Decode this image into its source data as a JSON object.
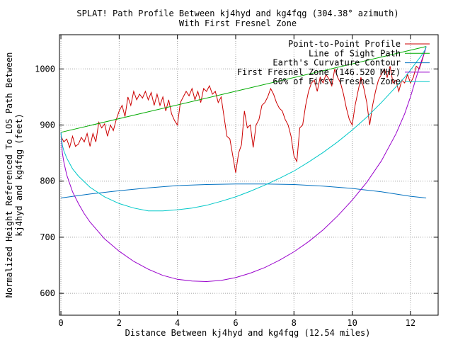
{
  "chart_data": {
    "type": "line",
    "title_line1": "SPLAT! Path Profile Between kj4hyd and kg4fqg (304.38° azimuth)",
    "title_line2": "With First Fresnel Zone",
    "xlabel": "Distance Between kj4hyd and kg4fqg (12.54 miles)",
    "ylabel_line1": "Normalized Height Referenced To LOS Path Between",
    "ylabel_line2": "kj4hyd and kg4fqg (feet)",
    "xlim": [
      -0.05,
      12.95
    ],
    "ylim": [
      561,
      1061
    ],
    "x_ticks": [
      0,
      2,
      4,
      6,
      8,
      10,
      12
    ],
    "x_tick_labels": [
      "0",
      "2",
      "4",
      "6",
      "8",
      "10",
      "12"
    ],
    "y_ticks": [
      600,
      700,
      800,
      900,
      1000
    ],
    "y_tick_labels": [
      "600",
      "700",
      "800",
      "900",
      "1000"
    ],
    "grid": true,
    "legend_position": "top-right",
    "series": [
      {
        "name": "Point-to-Point Profile",
        "color": "#cc0000",
        "x": [
          0,
          0.1,
          0.2,
          0.3,
          0.4,
          0.5,
          0.6,
          0.7,
          0.8,
          0.9,
          1.0,
          1.1,
          1.2,
          1.3,
          1.4,
          1.5,
          1.6,
          1.7,
          1.8,
          1.9,
          2.0,
          2.1,
          2.2,
          2.3,
          2.4,
          2.5,
          2.6,
          2.7,
          2.8,
          2.9,
          3.0,
          3.1,
          3.2,
          3.3,
          3.4,
          3.5,
          3.6,
          3.7,
          3.8,
          3.9,
          4.0,
          4.1,
          4.2,
          4.3,
          4.4,
          4.5,
          4.6,
          4.7,
          4.8,
          4.9,
          5.0,
          5.1,
          5.2,
          5.3,
          5.4,
          5.5,
          5.6,
          5.7,
          5.8,
          5.9,
          6.0,
          6.1,
          6.2,
          6.3,
          6.4,
          6.5,
          6.6,
          6.7,
          6.8,
          6.9,
          7.0,
          7.1,
          7.2,
          7.3,
          7.4,
          7.5,
          7.6,
          7.7,
          7.8,
          7.9,
          8.0,
          8.1,
          8.2,
          8.3,
          8.4,
          8.5,
          8.6,
          8.7,
          8.8,
          8.9,
          9.0,
          9.1,
          9.2,
          9.3,
          9.4,
          9.5,
          9.6,
          9.7,
          9.8,
          9.9,
          10.0,
          10.1,
          10.2,
          10.3,
          10.4,
          10.5,
          10.6,
          10.7,
          10.8,
          10.9,
          11.0,
          11.1,
          11.2,
          11.3,
          11.4,
          11.5,
          11.6,
          11.7,
          11.8,
          11.9,
          12.0,
          12.1,
          12.2,
          12.3,
          12.4,
          12.54
        ],
        "y": [
          880,
          870,
          875,
          860,
          880,
          862,
          866,
          878,
          870,
          885,
          862,
          885,
          870,
          905,
          895,
          902,
          880,
          900,
          890,
          910,
          925,
          935,
          915,
          950,
          935,
          960,
          945,
          955,
          948,
          960,
          945,
          958,
          935,
          955,
          935,
          950,
          925,
          945,
          920,
          908,
          900,
          940,
          950,
          960,
          952,
          965,
          945,
          960,
          940,
          965,
          960,
          970,
          955,
          960,
          940,
          950,
          915,
          880,
          875,
          845,
          815,
          850,
          865,
          925,
          895,
          900,
          860,
          900,
          910,
          935,
          940,
          950,
          965,
          955,
          940,
          930,
          925,
          910,
          900,
          880,
          845,
          835,
          895,
          900,
          935,
          960,
          975,
          980,
          960,
          985,
          975,
          990,
          982,
          970,
          1000,
          985,
          975,
          955,
          930,
          910,
          900,
          935,
          960,
          985,
          965,
          940,
          900,
          935,
          960,
          980,
          990,
          1000,
          985,
          1005,
          975,
          980,
          960,
          980,
          975,
          990,
          975,
          985,
          1005,
          1000,
          1015,
          1040
        ]
      },
      {
        "name": "Line of Sight Path",
        "color": "#00aa00",
        "x": [
          0,
          12.54
        ],
        "y": [
          887,
          1040
        ]
      },
      {
        "name": "Earth's Curvature Contour",
        "color": "#0070c0",
        "x": [
          0,
          1,
          2,
          3,
          4,
          5,
          6,
          7,
          8,
          9,
          10,
          11,
          12,
          12.54
        ],
        "y": [
          770,
          777,
          783,
          788,
          792,
          794,
          795,
          795,
          794,
          791,
          787,
          781,
          773,
          770
        ]
      },
      {
        "name": "First Fresnel Zone (146.520 MHz)",
        "color": "#9900cc",
        "x": [
          0,
          0.05,
          0.1,
          0.2,
          0.4,
          0.6,
          0.8,
          1.0,
          1.5,
          2.0,
          2.5,
          3.0,
          3.5,
          4.0,
          4.5,
          5.0,
          5.5,
          6.0,
          6.5,
          7.0,
          7.5,
          8.0,
          8.5,
          9.0,
          9.5,
          10.0,
          10.5,
          11.0,
          11.5,
          11.8,
          12.0,
          12.2,
          12.35,
          12.45,
          12.5,
          12.54
        ],
        "y": [
          887,
          850,
          834,
          811,
          781,
          760,
          742,
          727,
          697,
          675,
          657,
          643,
          632,
          625,
          622,
          621,
          623,
          628,
          636,
          646,
          659,
          674,
          692,
          713,
          738,
          766,
          798,
          836,
          884,
          920,
          950,
          985,
          1010,
          1025,
          1032,
          1040
        ]
      },
      {
        "name": "60% of First Fresnel Zone",
        "color": "#00c8c8",
        "x": [
          0,
          0.05,
          0.1,
          0.2,
          0.4,
          0.6,
          0.8,
          1.0,
          1.5,
          2.0,
          2.5,
          3.0,
          3.5,
          4.0,
          4.5,
          5.0,
          5.5,
          6.0,
          6.5,
          7.0,
          7.5,
          8.0,
          8.5,
          9.0,
          9.5,
          10.0,
          10.5,
          11.0,
          11.5,
          11.8,
          12.0,
          12.2,
          12.35,
          12.45,
          12.5,
          12.54
        ],
        "y": [
          887,
          864,
          854,
          841,
          822,
          809,
          799,
          789,
          772,
          760,
          752,
          747,
          747,
          749,
          752,
          757,
          764,
          772,
          782,
          793,
          805,
          818,
          834,
          851,
          870,
          891,
          914,
          940,
          968,
          985,
          998,
          1012,
          1022,
          1030,
          1034,
          1040
        ]
      }
    ]
  }
}
